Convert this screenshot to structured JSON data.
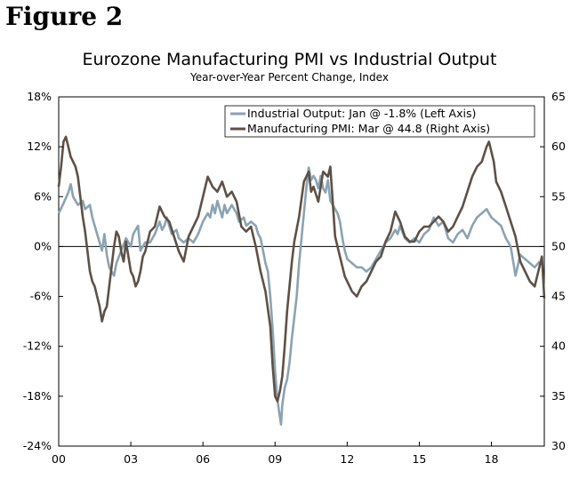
{
  "figure_label": "Figure 2",
  "chart_data": {
    "type": "line",
    "title": "Eurozone Manufacturing PMI vs Industrial Output",
    "subtitle": "Year-over-Year Percent Change, Index",
    "x_range": [
      2000,
      2020.2
    ],
    "x_ticks": [
      {
        "value": 2000,
        "label": "00"
      },
      {
        "value": 2003,
        "label": "03"
      },
      {
        "value": 2006,
        "label": "06"
      },
      {
        "value": 2009,
        "label": "09"
      },
      {
        "value": 2012,
        "label": "12"
      },
      {
        "value": 2015,
        "label": "15"
      },
      {
        "value": 2018,
        "label": "18"
      }
    ],
    "left_axis": {
      "ylim": [
        -24,
        18
      ],
      "ticks": [
        "18%",
        "12%",
        "6%",
        "0%",
        "-6%",
        "-12%",
        "-18%",
        "-24%"
      ],
      "tick_values": [
        18,
        12,
        6,
        0,
        -6,
        -12,
        -18,
        -24
      ]
    },
    "right_axis": {
      "ylim": [
        30,
        65
      ],
      "ticks": [
        "65",
        "60",
        "55",
        "50",
        "45",
        "40",
        "35",
        "30"
      ],
      "tick_values": [
        65,
        60,
        55,
        50,
        45,
        40,
        35,
        30
      ]
    },
    "zero_line": 0,
    "legend_position": "top-right",
    "series": [
      {
        "name": "Industrial Output: Jan @ -1.8% (Left Axis)",
        "axis": "left",
        "color": "#8ba3b3",
        "points": [
          [
            2000.0,
            4.0
          ],
          [
            2000.2,
            5.2
          ],
          [
            2000.4,
            6.5
          ],
          [
            2000.5,
            7.5
          ],
          [
            2000.6,
            6.0
          ],
          [
            2000.8,
            5.0
          ],
          [
            2001.0,
            5.5
          ],
          [
            2001.1,
            4.5
          ],
          [
            2001.3,
            5.0
          ],
          [
            2001.4,
            3.5
          ],
          [
            2001.6,
            1.5
          ],
          [
            2001.8,
            -0.5
          ],
          [
            2001.9,
            1.5
          ],
          [
            2002.0,
            -1.0
          ],
          [
            2002.1,
            -2.5
          ],
          [
            2002.3,
            -3.5
          ],
          [
            2002.4,
            -2.0
          ],
          [
            2002.6,
            -0.5
          ],
          [
            2002.8,
            1.0
          ],
          [
            2003.0,
            0.0
          ],
          [
            2003.1,
            1.5
          ],
          [
            2003.3,
            2.5
          ],
          [
            2003.4,
            -0.5
          ],
          [
            2003.6,
            0.5
          ],
          [
            2003.8,
            0.5
          ],
          [
            2004.0,
            1.5
          ],
          [
            2004.2,
            3.0
          ],
          [
            2004.3,
            2.0
          ],
          [
            2004.4,
            2.5
          ],
          [
            2004.5,
            3.5
          ],
          [
            2004.7,
            1.5
          ],
          [
            2004.9,
            2.0
          ],
          [
            2005.0,
            1.0
          ],
          [
            2005.2,
            0.5
          ],
          [
            2005.4,
            1.0
          ],
          [
            2005.6,
            0.5
          ],
          [
            2005.8,
            1.5
          ],
          [
            2006.0,
            3.0
          ],
          [
            2006.2,
            4.0
          ],
          [
            2006.3,
            3.5
          ],
          [
            2006.4,
            5.0
          ],
          [
            2006.5,
            4.0
          ],
          [
            2006.6,
            5.5
          ],
          [
            2006.8,
            3.5
          ],
          [
            2006.9,
            5.0
          ],
          [
            2007.0,
            4.0
          ],
          [
            2007.2,
            5.0
          ],
          [
            2007.4,
            4.0
          ],
          [
            2007.5,
            3.0
          ],
          [
            2007.7,
            3.5
          ],
          [
            2007.8,
            2.5
          ],
          [
            2008.0,
            3.0
          ],
          [
            2008.2,
            2.5
          ],
          [
            2008.3,
            1.5
          ],
          [
            2008.4,
            1.0
          ],
          [
            2008.5,
            -0.5
          ],
          [
            2008.6,
            -2.0
          ],
          [
            2008.7,
            -3.0
          ],
          [
            2008.8,
            -6.0
          ],
          [
            2008.9,
            -10.0
          ],
          [
            2009.0,
            -15.0
          ],
          [
            2009.1,
            -18.5
          ],
          [
            2009.2,
            -20.5
          ],
          [
            2009.25,
            -21.4
          ],
          [
            2009.3,
            -19.0
          ],
          [
            2009.4,
            -17.0
          ],
          [
            2009.5,
            -16.0
          ],
          [
            2009.6,
            -14.0
          ],
          [
            2009.7,
            -11.0
          ],
          [
            2009.8,
            -8.5
          ],
          [
            2009.9,
            -6.0
          ],
          [
            2010.0,
            -2.0
          ],
          [
            2010.1,
            1.0
          ],
          [
            2010.2,
            4.0
          ],
          [
            2010.3,
            7.0
          ],
          [
            2010.4,
            9.5
          ],
          [
            2010.5,
            8.0
          ],
          [
            2010.6,
            8.5
          ],
          [
            2010.7,
            8.0
          ],
          [
            2010.8,
            7.0
          ],
          [
            2010.9,
            8.5
          ],
          [
            2011.0,
            7.0
          ],
          [
            2011.1,
            6.5
          ],
          [
            2011.2,
            8.0
          ],
          [
            2011.3,
            5.5
          ],
          [
            2011.4,
            5.0
          ],
          [
            2011.5,
            4.5
          ],
          [
            2011.6,
            4.0
          ],
          [
            2011.7,
            3.0
          ],
          [
            2011.8,
            1.0
          ],
          [
            2011.9,
            -0.5
          ],
          [
            2012.0,
            -1.5
          ],
          [
            2012.2,
            -2.0
          ],
          [
            2012.4,
            -2.5
          ],
          [
            2012.6,
            -2.5
          ],
          [
            2012.8,
            -3.0
          ],
          [
            2013.0,
            -2.5
          ],
          [
            2013.2,
            -1.5
          ],
          [
            2013.4,
            -0.5
          ],
          [
            2013.6,
            0.5
          ],
          [
            2013.8,
            1.0
          ],
          [
            2014.0,
            2.0
          ],
          [
            2014.1,
            1.5
          ],
          [
            2014.2,
            2.5
          ],
          [
            2014.4,
            1.0
          ],
          [
            2014.6,
            0.5
          ],
          [
            2014.8,
            1.0
          ],
          [
            2015.0,
            0.5
          ],
          [
            2015.2,
            1.5
          ],
          [
            2015.4,
            2.0
          ],
          [
            2015.6,
            3.5
          ],
          [
            2015.8,
            2.5
          ],
          [
            2016.0,
            3.0
          ],
          [
            2016.2,
            1.0
          ],
          [
            2016.4,
            0.5
          ],
          [
            2016.6,
            1.5
          ],
          [
            2016.8,
            2.0
          ],
          [
            2017.0,
            1.0
          ],
          [
            2017.2,
            2.5
          ],
          [
            2017.4,
            3.5
          ],
          [
            2017.6,
            4.0
          ],
          [
            2017.8,
            4.5
          ],
          [
            2018.0,
            3.5
          ],
          [
            2018.2,
            3.0
          ],
          [
            2018.4,
            2.5
          ],
          [
            2018.6,
            1.0
          ],
          [
            2018.8,
            0.0
          ],
          [
            2019.0,
            -3.5
          ],
          [
            2019.2,
            -1.0
          ],
          [
            2019.4,
            -1.5
          ],
          [
            2019.6,
            -2.0
          ],
          [
            2019.8,
            -2.5
          ],
          [
            2020.0,
            -1.8
          ]
        ]
      },
      {
        "name": "Manufacturing PMI: Mar @ 44.8 (Right Axis)",
        "axis": "right",
        "color": "#5d5147",
        "points": [
          [
            2000.0,
            56.0
          ],
          [
            2000.1,
            58.0
          ],
          [
            2000.2,
            60.5
          ],
          [
            2000.3,
            61.0
          ],
          [
            2000.4,
            60.0
          ],
          [
            2000.5,
            59.0
          ],
          [
            2000.7,
            58.0
          ],
          [
            2000.8,
            57.0
          ],
          [
            2000.9,
            55.0
          ],
          [
            2001.0,
            53.0
          ],
          [
            2001.1,
            51.5
          ],
          [
            2001.2,
            49.5
          ],
          [
            2001.3,
            47.5
          ],
          [
            2001.4,
            46.5
          ],
          [
            2001.5,
            46.0
          ],
          [
            2001.6,
            45.0
          ],
          [
            2001.7,
            44.0
          ],
          [
            2001.8,
            42.5
          ],
          [
            2001.9,
            43.5
          ],
          [
            2002.0,
            44.0
          ],
          [
            2002.1,
            46.0
          ],
          [
            2002.2,
            48.0
          ],
          [
            2002.3,
            50.0
          ],
          [
            2002.4,
            51.5
          ],
          [
            2002.5,
            51.0
          ],
          [
            2002.6,
            49.5
          ],
          [
            2002.7,
            48.5
          ],
          [
            2002.8,
            50.5
          ],
          [
            2002.9,
            49.0
          ],
          [
            2003.0,
            47.5
          ],
          [
            2003.1,
            47.0
          ],
          [
            2003.2,
            46.0
          ],
          [
            2003.3,
            46.5
          ],
          [
            2003.4,
            47.5
          ],
          [
            2003.5,
            49.0
          ],
          [
            2003.6,
            49.5
          ],
          [
            2003.8,
            51.5
          ],
          [
            2004.0,
            52.0
          ],
          [
            2004.2,
            54.0
          ],
          [
            2004.4,
            53.0
          ],
          [
            2004.6,
            52.5
          ],
          [
            2004.8,
            51.0
          ],
          [
            2005.0,
            49.5
          ],
          [
            2005.2,
            48.5
          ],
          [
            2005.4,
            51.0
          ],
          [
            2005.6,
            52.0
          ],
          [
            2005.8,
            53.0
          ],
          [
            2006.0,
            55.0
          ],
          [
            2006.2,
            57.0
          ],
          [
            2006.4,
            56.0
          ],
          [
            2006.6,
            55.5
          ],
          [
            2006.8,
            56.5
          ],
          [
            2007.0,
            55.0
          ],
          [
            2007.2,
            55.5
          ],
          [
            2007.4,
            54.5
          ],
          [
            2007.6,
            52.0
          ],
          [
            2007.8,
            51.5
          ],
          [
            2008.0,
            52.0
          ],
          [
            2008.2,
            50.0
          ],
          [
            2008.4,
            47.5
          ],
          [
            2008.6,
            45.5
          ],
          [
            2008.8,
            42.0
          ],
          [
            2008.9,
            38.0
          ],
          [
            2009.0,
            35.0
          ],
          [
            2009.1,
            34.5
          ],
          [
            2009.2,
            35.5
          ],
          [
            2009.3,
            37.0
          ],
          [
            2009.4,
            40.0
          ],
          [
            2009.5,
            43.5
          ],
          [
            2009.6,
            46.0
          ],
          [
            2009.7,
            48.5
          ],
          [
            2009.8,
            50.5
          ],
          [
            2010.0,
            53.0
          ],
          [
            2010.2,
            56.5
          ],
          [
            2010.4,
            57.5
          ],
          [
            2010.5,
            55.5
          ],
          [
            2010.6,
            56.0
          ],
          [
            2010.8,
            54.5
          ],
          [
            2011.0,
            57.5
          ],
          [
            2011.2,
            57.0
          ],
          [
            2011.3,
            58.0
          ],
          [
            2011.4,
            54.5
          ],
          [
            2011.5,
            51.0
          ],
          [
            2011.7,
            49.0
          ],
          [
            2011.9,
            47.0
          ],
          [
            2012.0,
            46.5
          ],
          [
            2012.2,
            45.5
          ],
          [
            2012.4,
            45.0
          ],
          [
            2012.6,
            46.0
          ],
          [
            2012.8,
            46.5
          ],
          [
            2013.0,
            47.5
          ],
          [
            2013.2,
            48.5
          ],
          [
            2013.4,
            49.0
          ],
          [
            2013.6,
            50.5
          ],
          [
            2013.8,
            51.5
          ],
          [
            2014.0,
            53.5
          ],
          [
            2014.2,
            52.5
          ],
          [
            2014.4,
            51.0
          ],
          [
            2014.6,
            50.5
          ],
          [
            2014.8,
            50.5
          ],
          [
            2015.0,
            51.5
          ],
          [
            2015.2,
            52.0
          ],
          [
            2015.4,
            52.0
          ],
          [
            2015.6,
            52.5
          ],
          [
            2015.8,
            53.0
          ],
          [
            2016.0,
            52.5
          ],
          [
            2016.2,
            51.5
          ],
          [
            2016.4,
            52.0
          ],
          [
            2016.6,
            53.0
          ],
          [
            2016.8,
            54.0
          ],
          [
            2017.0,
            55.5
          ],
          [
            2017.2,
            57.0
          ],
          [
            2017.4,
            58.0
          ],
          [
            2017.6,
            58.5
          ],
          [
            2017.8,
            60.0
          ],
          [
            2017.9,
            60.5
          ],
          [
            2018.0,
            59.5
          ],
          [
            2018.1,
            58.5
          ],
          [
            2018.2,
            56.5
          ],
          [
            2018.4,
            55.5
          ],
          [
            2018.6,
            54.0
          ],
          [
            2018.8,
            52.5
          ],
          [
            2019.0,
            51.0
          ],
          [
            2019.2,
            48.5
          ],
          [
            2019.4,
            47.5
          ],
          [
            2019.6,
            46.5
          ],
          [
            2019.8,
            46.0
          ],
          [
            2019.9,
            47.0
          ],
          [
            2020.0,
            48.0
          ],
          [
            2020.1,
            49.0
          ],
          [
            2020.2,
            44.8
          ]
        ]
      }
    ]
  }
}
